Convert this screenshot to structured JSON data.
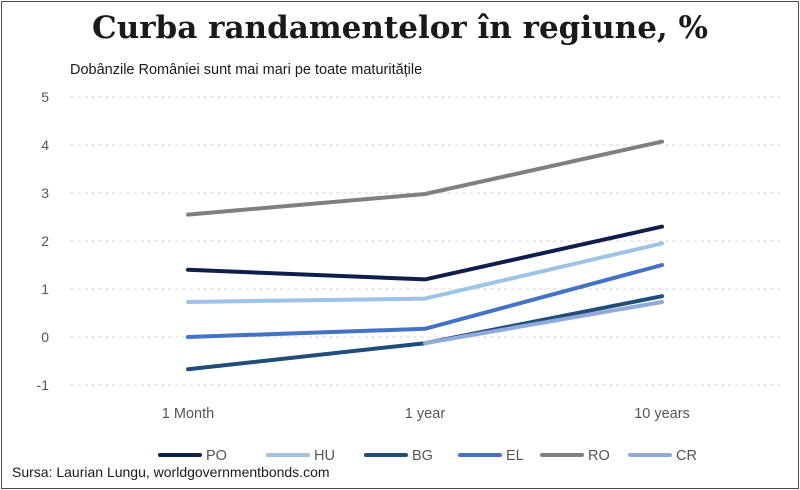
{
  "chart_data": {
    "type": "line",
    "title": "Curba randamentelor în regiune, %",
    "subtitle": "Dobânzile României sunt mai mari pe toate maturitățile",
    "source": "Sursa: Laurian Lungu, worldgovernmentbonds.com",
    "categories": [
      "1 Month",
      "1 year",
      "10 years"
    ],
    "ylim": [
      -1,
      5
    ],
    "yticks": [
      -1,
      0,
      1,
      2,
      3,
      4,
      5
    ],
    "grid": true,
    "legend_position": "bottom",
    "series": [
      {
        "name": "PO",
        "values": [
          1.4,
          1.2,
          2.3
        ],
        "color": "#0f1f4d"
      },
      {
        "name": "HU",
        "values": [
          0.73,
          0.8,
          1.95
        ],
        "color": "#9dc3e6"
      },
      {
        "name": "BG",
        "values": [
          -0.67,
          -0.13,
          0.85
        ],
        "color": "#1f4e79"
      },
      {
        "name": "EL",
        "values": [
          0.0,
          0.17,
          1.5
        ],
        "color": "#4472c4"
      },
      {
        "name": "RO",
        "values": [
          2.55,
          2.98,
          4.07
        ],
        "color": "#7f7f7f"
      },
      {
        "name": "CR",
        "values": [
          null,
          -0.13,
          0.73
        ],
        "color": "#8faadc"
      }
    ]
  }
}
